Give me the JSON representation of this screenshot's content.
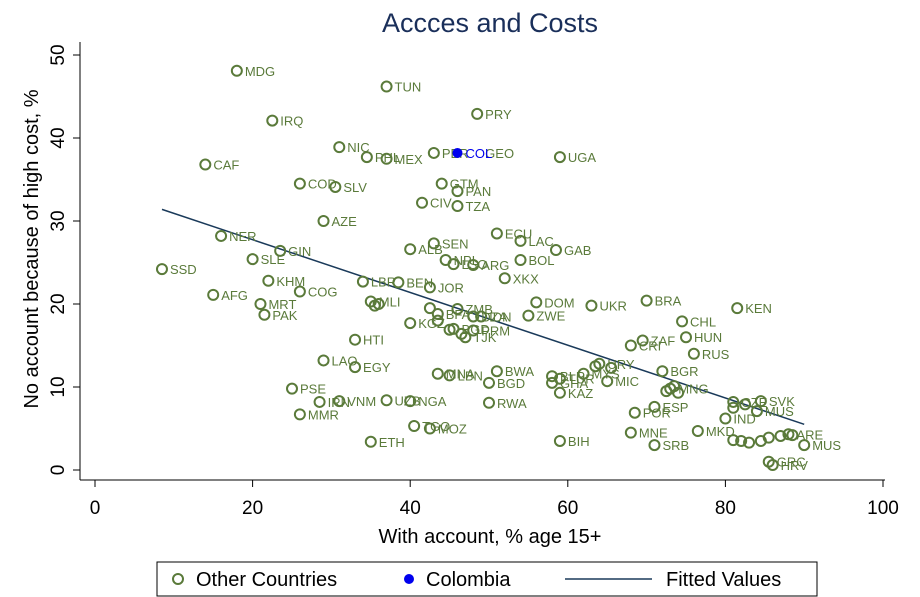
{
  "chart_data": {
    "type": "scatter",
    "title": "Accces and Costs",
    "xlabel": "With account, % age 15+",
    "ylabel": "No account because of high cost, %",
    "xlim": [
      0,
      100
    ],
    "ylim": [
      0,
      50
    ],
    "xticks": [
      0,
      20,
      40,
      60,
      80,
      100
    ],
    "yticks": [
      0,
      10,
      20,
      30,
      40,
      50
    ],
    "grid": false,
    "legend_position": "bottom",
    "colors": {
      "other": "#5a7a3a",
      "colombia": "#0000ee",
      "fit": "#1a3a5a",
      "title": "#1a2f5a"
    },
    "series": [
      {
        "name": "Other Countries",
        "kind": "points",
        "points": [
          {
            "label": "MDG",
            "x": 18,
            "y": 48.1
          },
          {
            "label": "TUN",
            "x": 37,
            "y": 46.2
          },
          {
            "label": "PRY",
            "x": 48.5,
            "y": 42.9
          },
          {
            "label": "IRQ",
            "x": 22.5,
            "y": 42.1
          },
          {
            "label": "NIC",
            "x": 31,
            "y": 38.9
          },
          {
            "label": "PHL",
            "x": 34.5,
            "y": 37.7
          },
          {
            "label": "MEX",
            "x": 37,
            "y": 37.5
          },
          {
            "label": "PER",
            "x": 43,
            "y": 38.2
          },
          {
            "label": "UGA",
            "x": 59,
            "y": 37.7
          },
          {
            "label": "CAF",
            "x": 14,
            "y": 36.8
          },
          {
            "label": "COD",
            "x": 26,
            "y": 34.5
          },
          {
            "label": "SLV",
            "x": 30.5,
            "y": 34.1
          },
          {
            "label": "GTM",
            "x": 44,
            "y": 34.5
          },
          {
            "label": "PAN",
            "x": 46,
            "y": 33.6
          },
          {
            "label": "CIV",
            "x": 41.5,
            "y": 32.2
          },
          {
            "label": "TZA",
            "x": 46,
            "y": 31.8
          },
          {
            "label": "AZE",
            "x": 29,
            "y": 30
          },
          {
            "label": "ECU",
            "x": 51,
            "y": 28.5
          },
          {
            "label": "LAC",
            "x": 54,
            "y": 27.6
          },
          {
            "label": "NER",
            "x": 16,
            "y": 28.2
          },
          {
            "label": "SEN",
            "x": 43,
            "y": 27.3
          },
          {
            "label": "ALB",
            "x": 40,
            "y": 26.6
          },
          {
            "label": "GAB",
            "x": 58.5,
            "y": 26.5
          },
          {
            "label": "GIN",
            "x": 23.5,
            "y": 26.4
          },
          {
            "label": "SLE",
            "x": 20,
            "y": 25.4
          },
          {
            "label": "NPL",
            "x": 44.5,
            "y": 25.3
          },
          {
            "label": "LSO",
            "x": 45.5,
            "y": 24.8
          },
          {
            "label": "ARG",
            "x": 48,
            "y": 24.7
          },
          {
            "label": "BOL",
            "x": 54,
            "y": 25.3
          },
          {
            "label": "SSD",
            "x": 8.5,
            "y": 24.2
          },
          {
            "label": "XKX",
            "x": 52,
            "y": 23.1
          },
          {
            "label": "KEN",
            "x": 81.5,
            "y": 19.5
          },
          {
            "label": "KHM",
            "x": 22,
            "y": 22.8
          },
          {
            "label": "LBR",
            "x": 34,
            "y": 22.7
          },
          {
            "label": "BEN",
            "x": 38.5,
            "y": 22.6
          },
          {
            "label": "JOR",
            "x": 42.5,
            "y": 22
          },
          {
            "label": "COG",
            "x": 26,
            "y": 21.5
          },
          {
            "label": "AFG",
            "x": 15,
            "y": 21.1
          },
          {
            "label": "BRA",
            "x": 70,
            "y": 20.4
          },
          {
            "label": "DOM",
            "x": 56,
            "y": 20.2
          },
          {
            "label": "UKR",
            "x": 63,
            "y": 19.8
          },
          {
            "label": "MRT",
            "x": 21,
            "y": 20
          },
          {
            "label": "MLI",
            "x": 35,
            "y": 20.3
          },
          {
            "label": "ZMB",
            "x": 46,
            "y": 19.4
          },
          {
            "label": "BFA",
            "x": 43.5,
            "y": 18.8
          },
          {
            "label": "PAK",
            "x": 21.5,
            "y": 18.7
          },
          {
            "label": "ZWE",
            "x": 55,
            "y": 18.6
          },
          {
            "label": "DZA",
            "x": 48,
            "y": 18.5
          },
          {
            "label": "IDN",
            "x": 49,
            "y": 18.5
          },
          {
            "label": "CHL",
            "x": 74.5,
            "y": 17.9
          },
          {
            "label": "KGZ",
            "x": 40,
            "y": 17.7
          },
          {
            "label": "BGD",
            "x": 45.5,
            "y": 17
          },
          {
            "label": "PRM",
            "x": 48,
            "y": 16.8
          },
          {
            "label": "TJK",
            "x": 47,
            "y": 16
          },
          {
            "label": "HUN",
            "x": 75,
            "y": 16
          },
          {
            "label": "ZAF",
            "x": 69.5,
            "y": 15.6
          },
          {
            "label": "CRI",
            "x": 68,
            "y": 15
          },
          {
            "label": "HTI",
            "x": 33,
            "y": 15.7
          },
          {
            "label": "RUS",
            "x": 76,
            "y": 14
          },
          {
            "label": "LAO",
            "x": 29,
            "y": 13.2
          },
          {
            "label": "EGY",
            "x": 33,
            "y": 12.4
          },
          {
            "label": "URY",
            "x": 64,
            "y": 12.8
          },
          {
            "label": "BGR",
            "x": 72,
            "y": 11.9
          },
          {
            "label": "BWA",
            "x": 51,
            "y": 11.9
          },
          {
            "label": "MNA",
            "x": 43.5,
            "y": 11.6
          },
          {
            "label": "LBN",
            "x": 45,
            "y": 11.4
          },
          {
            "label": "BLR",
            "x": 58,
            "y": 11.3
          },
          {
            "label": "MYS",
            "x": 62,
            "y": 11.6
          },
          {
            "label": "TUR",
            "x": 59,
            "y": 11
          },
          {
            "label": "BGD",
            "x": 50,
            "y": 10.5
          },
          {
            "label": "MIC",
            "x": 65,
            "y": 10.7
          },
          {
            "label": "GHA",
            "x": 58,
            "y": 10.5
          },
          {
            "label": "PSE",
            "x": 25,
            "y": 9.8
          },
          {
            "label": "MNG",
            "x": 73,
            "y": 9.8
          },
          {
            "label": "KAZ",
            "x": 59,
            "y": 9.3
          },
          {
            "label": "VNM",
            "x": 31,
            "y": 8.3
          },
          {
            "label": "IRN",
            "x": 28.5,
            "y": 8.2
          },
          {
            "label": "UZB",
            "x": 37,
            "y": 8.4
          },
          {
            "label": "NGA",
            "x": 40,
            "y": 8.3
          },
          {
            "label": "RWA",
            "x": 50,
            "y": 8.1
          },
          {
            "label": "SVK",
            "x": 84.5,
            "y": 8.3
          },
          {
            "label": "CZE",
            "x": 81,
            "y": 8.2
          },
          {
            "label": "ESP",
            "x": 71,
            "y": 7.6
          },
          {
            "label": "MUS",
            "x": 84,
            "y": 7.1
          },
          {
            "label": "MMR",
            "x": 26,
            "y": 6.7
          },
          {
            "label": "POR",
            "x": 68.5,
            "y": 6.9
          },
          {
            "label": "IND",
            "x": 80,
            "y": 6.2
          },
          {
            "label": "TGO",
            "x": 40.5,
            "y": 5.3
          },
          {
            "label": "MOZ",
            "x": 42.5,
            "y": 5
          },
          {
            "label": "MNE",
            "x": 68,
            "y": 4.5
          },
          {
            "label": "MKD",
            "x": 76.5,
            "y": 4.7
          },
          {
            "label": "ETH",
            "x": 35,
            "y": 3.4
          },
          {
            "label": "BIH",
            "x": 59,
            "y": 3.5
          },
          {
            "label": "SRB",
            "x": 71,
            "y": 3
          },
          {
            "label": "ARE",
            "x": 88,
            "y": 4.3
          },
          {
            "label": "MUS",
            "x": 90,
            "y": 3
          },
          {
            "label": "GRC",
            "x": 85.5,
            "y": 1
          },
          {
            "label": "HRV",
            "x": 86,
            "y": 0.6
          }
        ],
        "unlabeled": [
          {
            "x": 35.5,
            "y": 19.8
          },
          {
            "x": 36,
            "y": 20
          },
          {
            "x": 42.5,
            "y": 19.5
          },
          {
            "x": 43.5,
            "y": 18
          },
          {
            "x": 45,
            "y": 16.9
          },
          {
            "x": 46.5,
            "y": 16.4
          },
          {
            "x": 63.5,
            "y": 12.5
          },
          {
            "x": 65.5,
            "y": 12.3
          },
          {
            "x": 72.5,
            "y": 9.5
          },
          {
            "x": 73.5,
            "y": 10.1
          },
          {
            "x": 74,
            "y": 9.3
          },
          {
            "x": 81,
            "y": 7.5
          },
          {
            "x": 82.5,
            "y": 7.9
          },
          {
            "x": 81,
            "y": 3.6
          },
          {
            "x": 82,
            "y": 3.5
          },
          {
            "x": 83,
            "y": 3.3
          },
          {
            "x": 84.5,
            "y": 3.5
          },
          {
            "x": 85.5,
            "y": 3.9
          },
          {
            "x": 87,
            "y": 4.1
          },
          {
            "x": 88.5,
            "y": 4.2
          }
        ]
      },
      {
        "name": "Colombia",
        "kind": "points",
        "points": [
          {
            "label": "COL",
            "x": 46,
            "y": 38.2
          }
        ]
      },
      {
        "name": "Fitted Values",
        "kind": "line",
        "points": [
          {
            "x": 8.5,
            "y": 31.4
          },
          {
            "x": 90,
            "y": 5.5
          }
        ]
      }
    ],
    "other_labels_extra": [
      {
        "label": "GEO",
        "x": 48.5,
        "y": 38.2
      }
    ]
  }
}
